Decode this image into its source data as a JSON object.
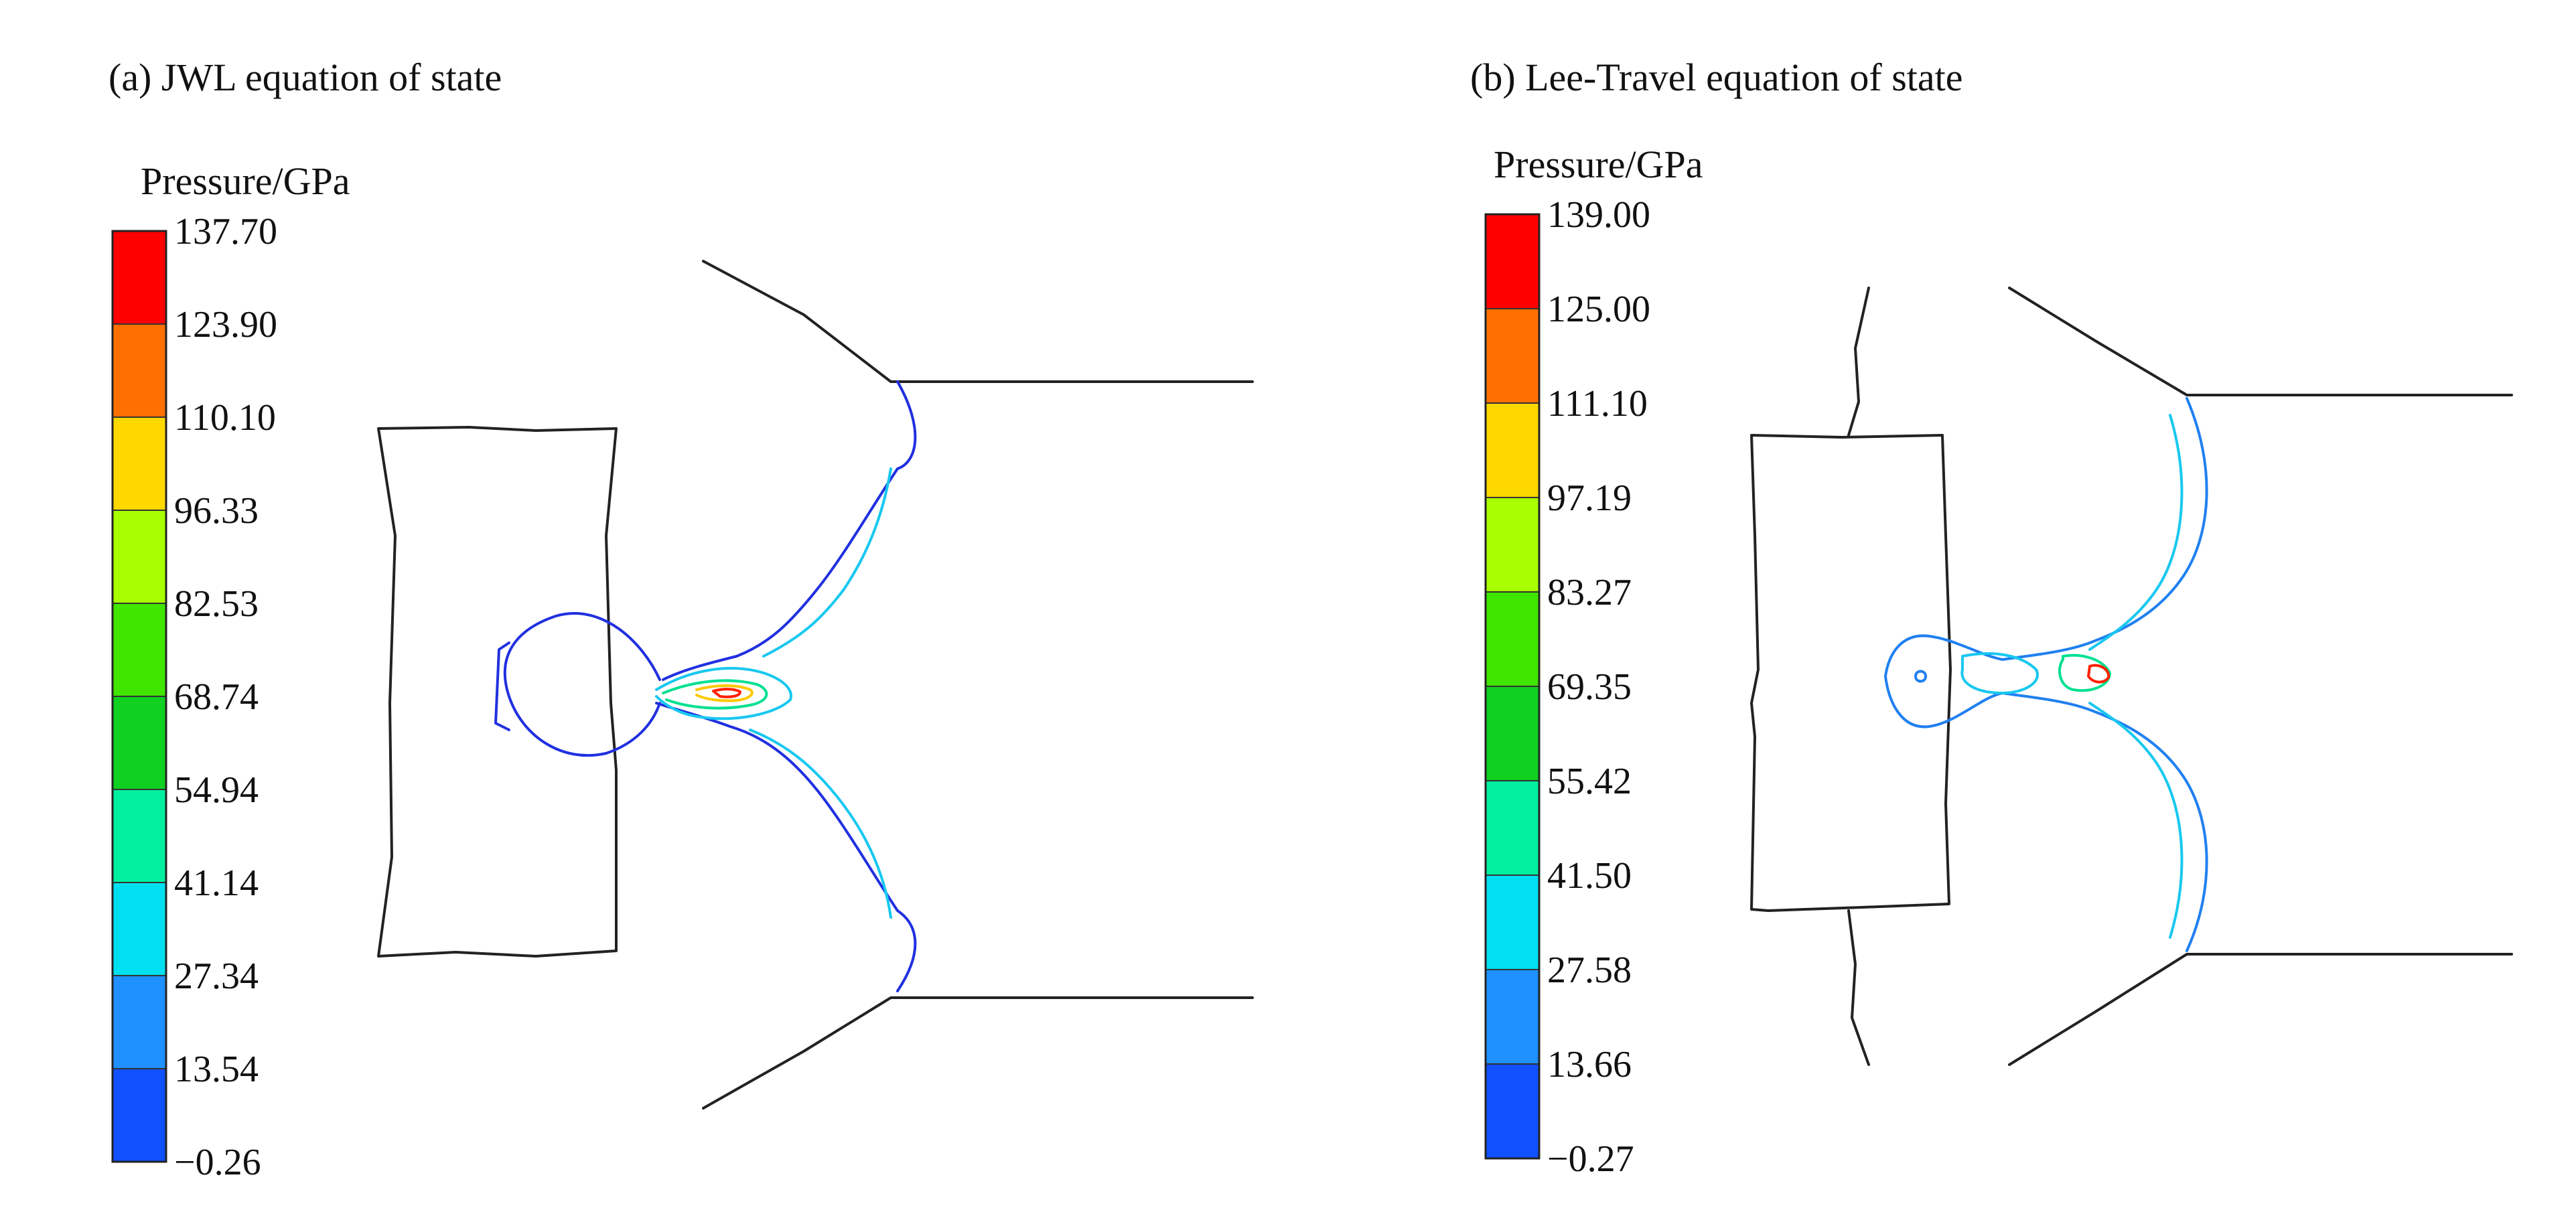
{
  "panels": [
    {
      "id": "a",
      "title": "(a) JWL equation of state",
      "legend_title": "Pressure/GPa",
      "levels": [
        "137.70",
        "123.90",
        "110.10",
        "96.33",
        "82.53",
        "68.74",
        "54.94",
        "41.14",
        "27.34",
        "13.54",
        "−0.26"
      ],
      "band_colors": [
        "#ff0000",
        "#ff7000",
        "#ffd800",
        "#a8ff00",
        "#40e600",
        "#10d020",
        "#00f0a0",
        "#00e0f0",
        "#1e90ff",
        "#1050ff"
      ]
    },
    {
      "id": "b",
      "title": "(b) Lee-Travel equation of state",
      "legend_title": "Pressure/GPa",
      "levels": [
        "139.00",
        "125.00",
        "111.10",
        "97.19",
        "83.27",
        "69.35",
        "55.42",
        "41.50",
        "27.58",
        "13.66",
        "−0.27"
      ],
      "band_colors": [
        "#ff0000",
        "#ff7000",
        "#ffd800",
        "#a8ff00",
        "#40e600",
        "#10d020",
        "#00f0a0",
        "#00e0f0",
        "#1e90ff",
        "#1050ff"
      ]
    }
  ]
}
